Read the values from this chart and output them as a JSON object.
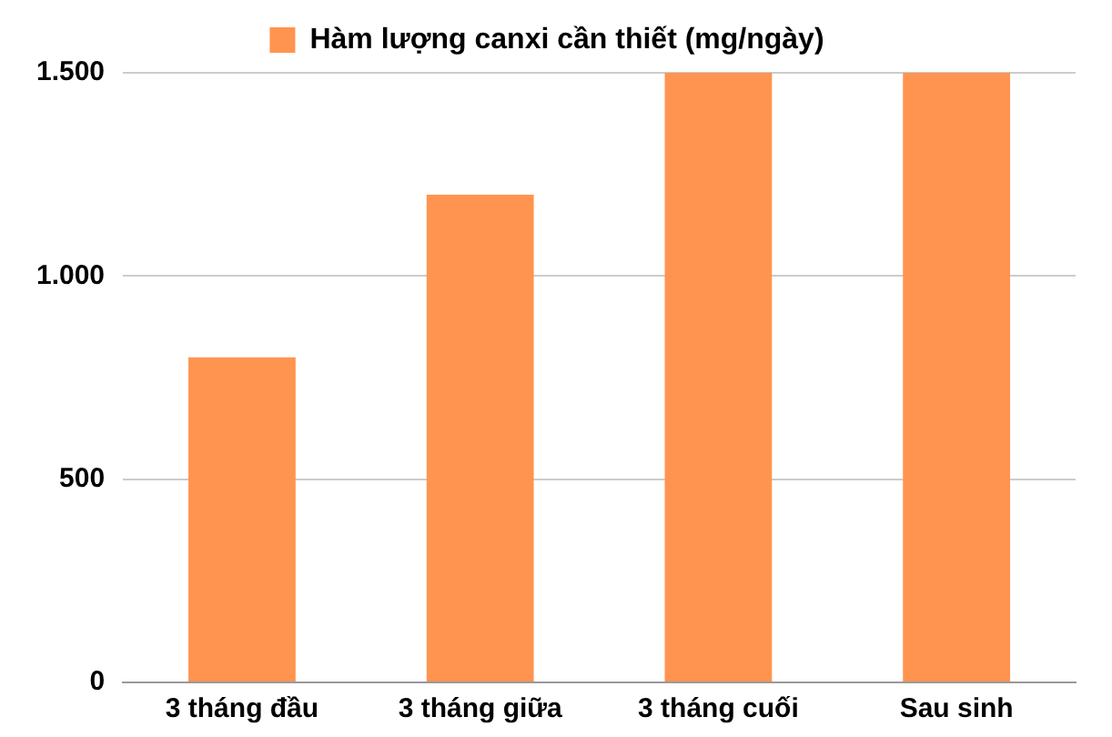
{
  "chart_data": {
    "type": "bar",
    "categories": [
      "3 tháng đầu",
      "3 tháng giữa",
      "3 tháng cuối",
      "Sau sinh"
    ],
    "series": [
      {
        "name": "Hàm lượng canxi cần thiết (mg/ngày)",
        "color": "#ff9450",
        "values": [
          800,
          1200,
          1500,
          1500
        ]
      }
    ],
    "ylim": [
      0,
      1500
    ],
    "yticks": [
      0,
      500,
      {
        "value": 1000,
        "label": "1.000"
      },
      {
        "value": 1500,
        "label": "1.500"
      }
    ],
    "grid": "y",
    "legend": "top"
  }
}
